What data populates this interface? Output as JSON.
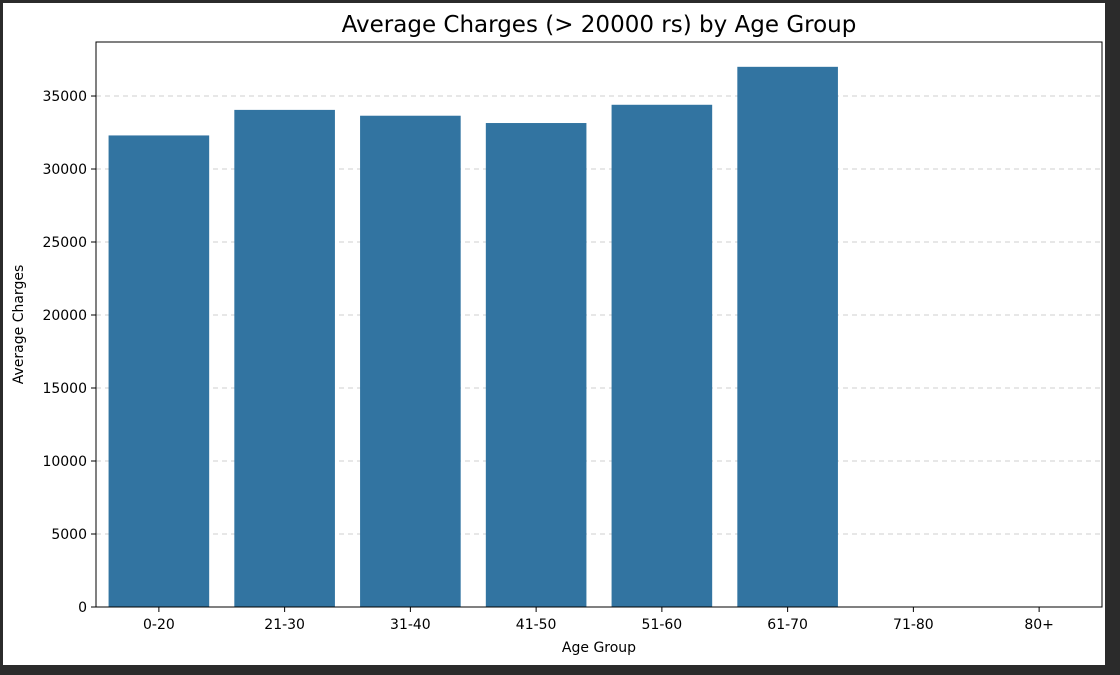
{
  "chart_data": {
    "type": "bar",
    "title": "Average Charges (> 20000 rs) by Age Group",
    "xlabel": "Age Group",
    "ylabel": "Average Charges",
    "categories": [
      "0-20",
      "21-30",
      "31-40",
      "41-50",
      "51-60",
      "61-70",
      "71-80",
      "80+"
    ],
    "values": [
      32300,
      34050,
      33650,
      33150,
      34400,
      37000,
      0,
      0
    ],
    "ylim": [
      0,
      38700
    ],
    "yticks": [
      0,
      5000,
      10000,
      15000,
      20000,
      25000,
      30000,
      35000
    ],
    "grid": "y",
    "grid_style": "dashed",
    "legend": "none",
    "bar_color": "#3274a1"
  }
}
